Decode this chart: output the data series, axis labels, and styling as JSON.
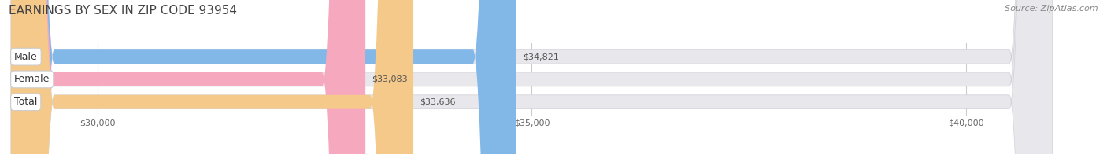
{
  "title": "EARNINGS BY SEX IN ZIP CODE 93954",
  "source": "Source: ZipAtlas.com",
  "categories": [
    "Male",
    "Female",
    "Total"
  ],
  "values": [
    34821,
    33083,
    33636
  ],
  "bar_colors": [
    "#82b8e8",
    "#f5a8be",
    "#f5c98a"
  ],
  "bar_track_color": "#e8e8ec",
  "value_labels": [
    "$34,821",
    "$33,083",
    "$33,636"
  ],
  "xlim": [
    29000,
    41500
  ],
  "xlim_display": [
    29000,
    41000
  ],
  "xticks": [
    30000,
    35000,
    40000
  ],
  "xtick_labels": [
    "$30,000",
    "$35,000",
    "$40,000"
  ],
  "bar_height": 0.62,
  "figsize": [
    14.06,
    1.96
  ],
  "dpi": 100,
  "bg_color": "#ffffff",
  "title_color": "#444444",
  "source_color": "#888888",
  "label_fontsize": 9,
  "value_fontsize": 8,
  "title_fontsize": 11,
  "source_fontsize": 8
}
